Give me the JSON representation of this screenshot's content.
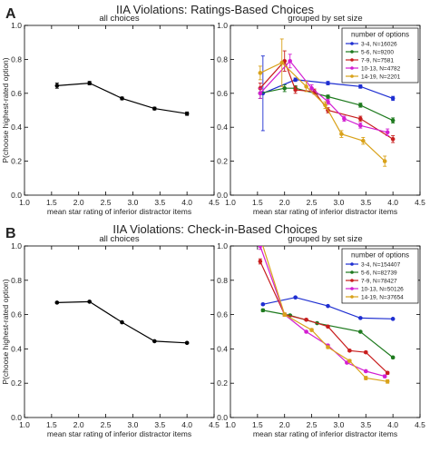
{
  "panels": [
    {
      "letter": "A",
      "title": "IIA Violations: Ratings-Based Choices"
    },
    {
      "letter": "B",
      "title": "IIA Violations: Check-in-Based Choices"
    }
  ],
  "chart_data": [
    {
      "type": "line",
      "title": "all choices",
      "xlabel": "mean star rating of inferior distractor items",
      "ylabel": "P(choose highest-rated option)",
      "xlim": [
        1.0,
        4.5
      ],
      "ylim": [
        0.0,
        1.0
      ],
      "xticks": [
        "1.0",
        "1.5",
        "2.0",
        "2.5",
        "3.0",
        "3.5",
        "4.0",
        "4.5"
      ],
      "yticks": [
        "0.0",
        "0.2",
        "0.4",
        "0.6",
        "0.8",
        "1.0"
      ],
      "series": [
        {
          "color": "#000000",
          "x": [
            1.6,
            2.2,
            2.8,
            3.4,
            4.0
          ],
          "y": [
            0.645,
            0.66,
            0.57,
            0.51,
            0.48
          ],
          "err": [
            0.015,
            0.01,
            0.008,
            0.008,
            0.01
          ]
        }
      ]
    },
    {
      "type": "line",
      "title": "grouped by set size",
      "xlabel": "mean star rating of inferior distractor items",
      "ylabel": "",
      "legend_title": "number of options",
      "legend_position": "top-right",
      "xlim": [
        1.0,
        4.5
      ],
      "ylim": [
        0.0,
        1.0
      ],
      "xticks": [
        "1.0",
        "1.5",
        "2.0",
        "2.5",
        "3.0",
        "3.5",
        "4.0",
        "4.5"
      ],
      "yticks": [
        "0.0",
        "0.2",
        "0.4",
        "0.6",
        "0.8",
        "1.0"
      ],
      "series": [
        {
          "name": "3-4, N=16026",
          "color": "#1f2fd1",
          "x": [
            1.6,
            2.2,
            2.8,
            3.4,
            4.0
          ],
          "y": [
            0.6,
            0.68,
            0.66,
            0.64,
            0.57
          ],
          "err": [
            0.22,
            0.01,
            0.01,
            0.01,
            0.012
          ]
        },
        {
          "name": "5-6, N=9200",
          "color": "#1e7a1e",
          "x": [
            1.55,
            2.0,
            2.2,
            2.8,
            3.4,
            4.0
          ],
          "y": [
            0.6,
            0.63,
            0.63,
            0.58,
            0.53,
            0.44
          ],
          "err": [
            0.03,
            0.02,
            0.015,
            0.01,
            0.012,
            0.015
          ]
        },
        {
          "name": "7-9, N=7581",
          "color": "#c81e1e",
          "x": [
            1.55,
            2.0,
            2.2,
            2.55,
            2.8,
            3.4,
            4.0
          ],
          "y": [
            0.63,
            0.79,
            0.62,
            0.61,
            0.5,
            0.45,
            0.33
          ],
          "err": [
            0.03,
            0.06,
            0.02,
            0.015,
            0.015,
            0.015,
            0.02
          ]
        },
        {
          "name": "10-13, N=4782",
          "color": "#d21ed2",
          "x": [
            1.55,
            2.1,
            2.5,
            2.8,
            3.1,
            3.4,
            3.9
          ],
          "y": [
            0.6,
            0.79,
            0.63,
            0.55,
            0.45,
            0.41,
            0.37
          ],
          "err": [
            0.03,
            0.04,
            0.02,
            0.015,
            0.015,
            0.015,
            0.02
          ]
        },
        {
          "name": "14-19, N=2201",
          "color": "#d9a21b",
          "x": [
            1.55,
            1.95,
            2.4,
            2.75,
            3.05,
            3.45,
            3.85
          ],
          "y": [
            0.72,
            0.78,
            0.64,
            0.53,
            0.36,
            0.32,
            0.2
          ],
          "err": [
            0.04,
            0.14,
            0.03,
            0.02,
            0.02,
            0.02,
            0.03
          ]
        }
      ]
    },
    {
      "type": "line",
      "title": "all choices",
      "xlabel": "mean star rating of inferior distractor items",
      "ylabel": "P(choose highest-rated option)",
      "xlim": [
        1.0,
        4.5
      ],
      "ylim": [
        0.0,
        1.0
      ],
      "xticks": [
        "1.0",
        "1.5",
        "2.0",
        "2.5",
        "3.0",
        "3.5",
        "4.0",
        "4.5"
      ],
      "yticks": [
        "0.0",
        "0.2",
        "0.4",
        "0.6",
        "0.8",
        "1.0"
      ],
      "series": [
        {
          "color": "#000000",
          "x": [
            1.6,
            2.2,
            2.8,
            3.4,
            4.0
          ],
          "y": [
            0.67,
            0.675,
            0.555,
            0.445,
            0.435
          ],
          "err": [
            0.004,
            0.004,
            0.004,
            0.004,
            0.004
          ]
        }
      ]
    },
    {
      "type": "line",
      "title": "grouped by set size",
      "xlabel": "mean star rating of inferior distractor items",
      "ylabel": "",
      "legend_title": "number of options",
      "legend_position": "top-right",
      "xlim": [
        1.0,
        4.5
      ],
      "ylim": [
        0.0,
        1.0
      ],
      "xticks": [
        "1.0",
        "1.5",
        "2.0",
        "2.5",
        "3.0",
        "3.5",
        "4.0",
        "4.5"
      ],
      "yticks": [
        "0.0",
        "0.2",
        "0.4",
        "0.6",
        "0.8",
        "1.0"
      ],
      "series": [
        {
          "name": "3-4, N=154407",
          "color": "#1f2fd1",
          "x": [
            1.6,
            2.2,
            2.8,
            3.4,
            4.0
          ],
          "y": [
            0.66,
            0.7,
            0.65,
            0.58,
            0.575
          ],
          "err": [
            0.005,
            0.005,
            0.004,
            0.004,
            0.004
          ]
        },
        {
          "name": "5-6, N=82739",
          "color": "#1e7a1e",
          "x": [
            1.6,
            2.1,
            2.6,
            3.4,
            4.0
          ],
          "y": [
            0.625,
            0.595,
            0.55,
            0.5,
            0.35
          ],
          "err": [
            0.008,
            0.006,
            0.005,
            0.005,
            0.006
          ]
        },
        {
          "name": "7-9, N=78427",
          "color": "#c81e1e",
          "x": [
            1.55,
            2.0,
            2.4,
            2.8,
            3.2,
            3.5,
            3.9
          ],
          "y": [
            0.91,
            0.6,
            0.57,
            0.53,
            0.39,
            0.38,
            0.26
          ],
          "err": [
            0.015,
            0.008,
            0.006,
            0.006,
            0.006,
            0.006,
            0.008
          ]
        },
        {
          "name": "10-13, N=50126",
          "color": "#d21ed2",
          "x": [
            1.55,
            2.0,
            2.4,
            2.8,
            3.15,
            3.5,
            3.85
          ],
          "y": [
            1.0,
            0.6,
            0.5,
            0.42,
            0.32,
            0.27,
            0.24
          ],
          "err": [
            0.02,
            0.008,
            0.006,
            0.006,
            0.006,
            0.006,
            0.008
          ]
        },
        {
          "name": "14-19, N=37654",
          "color": "#d9a21b",
          "x": [
            1.55,
            2.0,
            2.5,
            2.8,
            3.2,
            3.5,
            3.9
          ],
          "y": [
            1.05,
            0.6,
            0.51,
            0.41,
            0.33,
            0.23,
            0.21
          ],
          "err": [
            0.02,
            0.01,
            0.008,
            0.008,
            0.008,
            0.01,
            0.01
          ]
        }
      ]
    }
  ]
}
